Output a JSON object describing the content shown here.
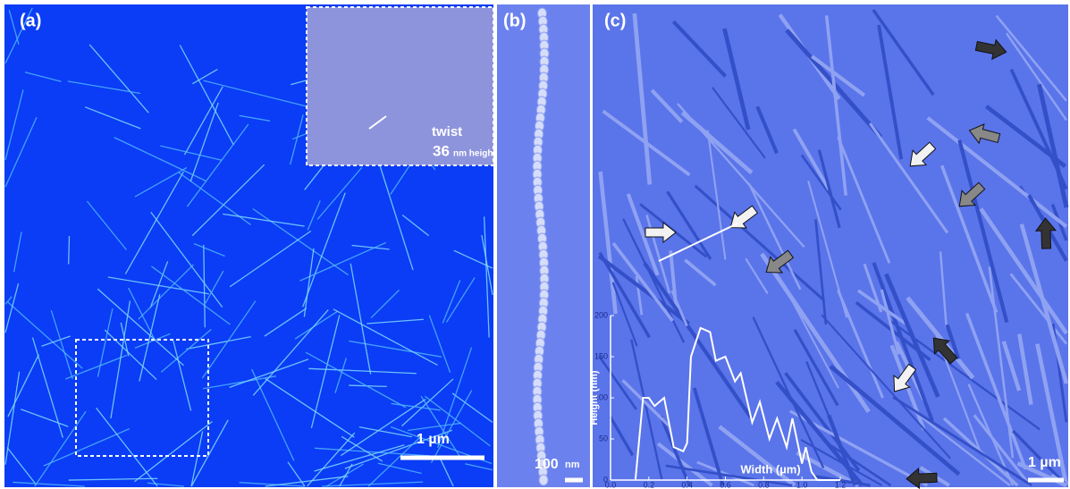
{
  "panels": [
    {
      "label": "(a)",
      "scale_bar": "1 µm",
      "inset": {
        "annotation": "twist",
        "height_value": "36",
        "height_unit": "nm height"
      }
    },
    {
      "label": "(b)",
      "scale_bar_value": "100",
      "scale_bar_unit": "nm"
    },
    {
      "label": "(c)",
      "scale_bar": "1 µm"
    }
  ],
  "chart_data": {
    "type": "line",
    "x_label": "Width (µm)",
    "y_label": "Height (nm)",
    "xlim": [
      0,
      1.2
    ],
    "ylim": [
      0,
      200
    ],
    "xticks": [
      {
        "value": 0,
        "label": "0.0"
      },
      0.2,
      0.4,
      0.6,
      0.8,
      {
        "value": 1,
        "label": "1.0"
      },
      1.2
    ],
    "yticks": [
      0,
      50,
      100,
      150,
      200
    ],
    "x": [
      0.13,
      0.17,
      0.2,
      0.23,
      0.28,
      0.33,
      0.38,
      0.4,
      0.42,
      0.47,
      0.52,
      0.55,
      0.6,
      0.65,
      0.68,
      0.74,
      0.78,
      0.83,
      0.87,
      0.92,
      0.95,
      1.0,
      1.02,
      1.05,
      1.08,
      1.2
    ],
    "series": [
      {
        "color": "#ffffff",
        "values": [
          0,
          100,
          100,
          90,
          100,
          40,
          35,
          45,
          150,
          185,
          180,
          145,
          150,
          120,
          130,
          70,
          95,
          50,
          75,
          40,
          75,
          20,
          40,
          10,
          0,
          0
        ]
      }
    ]
  }
}
